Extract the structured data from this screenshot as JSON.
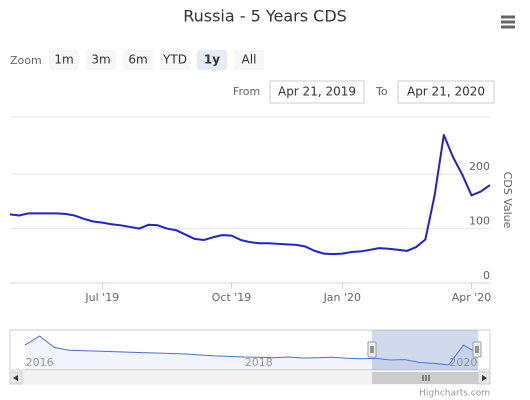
{
  "title": "Russia - 5 Years CDS",
  "range_selector": {
    "zoom_label": "Zoom",
    "buttons": [
      "1m",
      "3m",
      "6m",
      "YTD",
      "1y",
      "All"
    ],
    "selected": 4,
    "from_label": "From",
    "from": "Apr 21, 2019",
    "to_label": "To",
    "to": "Apr 21, 2020"
  },
  "chart_data": {
    "type": "line",
    "y_axis_title": "CDS Value",
    "color": "#2222c8",
    "categories": [
      null,
      null,
      null,
      null,
      null,
      null,
      null,
      null,
      null,
      null,
      "Jul '19",
      null,
      null,
      null,
      null,
      null,
      null,
      null,
      null,
      null,
      null,
      null,
      null,
      null,
      "Oct '19",
      null,
      null,
      null,
      null,
      null,
      null,
      null,
      null,
      null,
      null,
      null,
      "Jan '20",
      null,
      null,
      null,
      null,
      null,
      null,
      null,
      null,
      null,
      null,
      null,
      null,
      null,
      "Apr '20",
      null,
      null
    ],
    "values": [
      126,
      124,
      128,
      128,
      128,
      128,
      127,
      124,
      118,
      113,
      111,
      108,
      106,
      103,
      100,
      107,
      106,
      100,
      97,
      89,
      81,
      79,
      84,
      88,
      87,
      79,
      75,
      73,
      73,
      72,
      71,
      70,
      67,
      59,
      54,
      53,
      54,
      57,
      58,
      61,
      64,
      63,
      61,
      59,
      66,
      80,
      161,
      272,
      231,
      199,
      161,
      168,
      180
    ],
    "ylim": [
      0,
      305
    ],
    "yticks": [
      0,
      100,
      200
    ],
    "grid": true,
    "navigator": {
      "color": "#4f6fcf",
      "ylim": [
        -10,
        415
      ],
      "categories": [
        null,
        "2016",
        null,
        null,
        null,
        null,
        null,
        null,
        null,
        null,
        null,
        null,
        null,
        null,
        null,
        null,
        "2018",
        null,
        null,
        null,
        null,
        null,
        null,
        null,
        null,
        null,
        null,
        null,
        null,
        null,
        "2020",
        null
      ],
      "values": [
        255,
        350,
        230,
        200,
        195,
        190,
        185,
        180,
        175,
        170,
        165,
        160,
        150,
        140,
        135,
        128,
        125,
        120,
        128,
        118,
        120,
        125,
        115,
        110,
        114,
        96,
        100,
        70,
        60,
        45,
        255,
        166
      ]
    }
  },
  "credits": "Highcharts.com"
}
